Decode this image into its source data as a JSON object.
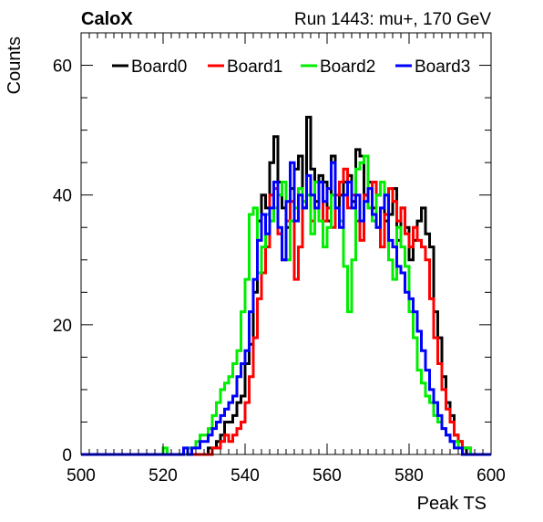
{
  "chart_data": {
    "type": "line",
    "experiment_label": "CaloX",
    "title": "Run 1443: mu+, 170 GeV",
    "xlabel": "Peak TS",
    "ylabel": "Counts",
    "xlim": [
      500,
      600
    ],
    "ylim": [
      0,
      65
    ],
    "x_ticks": [
      500,
      520,
      540,
      560,
      580,
      600
    ],
    "y_ticks": [
      0,
      20,
      40,
      60
    ],
    "grid": false,
    "legend_position": "top",
    "bin_width": 1,
    "x": [
      520,
      521,
      522,
      523,
      524,
      525,
      526,
      527,
      528,
      529,
      530,
      531,
      532,
      533,
      534,
      535,
      536,
      537,
      538,
      539,
      540,
      541,
      542,
      543,
      544,
      545,
      546,
      547,
      548,
      549,
      550,
      551,
      552,
      553,
      554,
      555,
      556,
      557,
      558,
      559,
      560,
      561,
      562,
      563,
      564,
      565,
      566,
      567,
      568,
      569,
      570,
      571,
      572,
      573,
      574,
      575,
      576,
      577,
      578,
      579,
      580,
      581,
      582,
      583,
      584,
      585,
      586,
      587,
      588,
      589,
      590,
      591,
      592,
      593,
      594,
      595,
      596,
      597,
      598,
      599
    ],
    "series": [
      {
        "name": "Board0",
        "color": "#000000",
        "values": [
          0,
          0,
          0,
          0,
          0,
          0,
          0,
          0,
          0,
          0,
          0,
          1,
          1,
          2,
          3,
          5,
          5,
          6,
          8,
          9,
          14,
          17,
          25,
          36,
          40,
          38,
          45,
          49,
          42,
          38,
          35,
          41,
          44,
          46,
          38,
          52,
          44,
          39,
          43,
          42,
          36,
          46,
          38,
          40,
          42,
          43,
          39,
          47,
          46,
          40,
          42,
          38,
          40,
          42,
          36,
          37,
          41,
          33,
          38,
          35,
          30,
          33,
          36,
          38,
          34,
          32,
          22,
          18,
          12,
          8,
          6,
          3,
          2,
          1,
          0,
          0,
          0,
          0,
          0,
          0
        ]
      },
      {
        "name": "Board1",
        "color": "#ff0000",
        "values": [
          0,
          0,
          0,
          0,
          0,
          0,
          0,
          0,
          0,
          0,
          0,
          0,
          1,
          1,
          2,
          3,
          2,
          3,
          4,
          5,
          8,
          12,
          18,
          24,
          28,
          32,
          40,
          41,
          34,
          30,
          36,
          39,
          27,
          32,
          38,
          40,
          36,
          38,
          42,
          36,
          38,
          35,
          40,
          42,
          44,
          38,
          40,
          36,
          33,
          40,
          38,
          42,
          35,
          32,
          37,
          41,
          39,
          36,
          38,
          34,
          32,
          35,
          33,
          32,
          30,
          24,
          18,
          14,
          10,
          7,
          5,
          3,
          2,
          1,
          1,
          0,
          0,
          0,
          0,
          0
        ]
      },
      {
        "name": "Board2",
        "color": "#00ee00",
        "values": [
          1,
          0,
          0,
          0,
          0,
          0,
          1,
          1,
          2,
          3,
          3,
          4,
          6,
          8,
          10,
          11,
          12,
          14,
          16,
          22,
          27,
          37,
          38,
          28,
          32,
          37,
          36,
          38,
          40,
          42,
          30,
          36,
          38,
          41,
          39,
          40,
          34,
          42,
          36,
          32,
          35,
          40,
          38,
          36,
          29,
          22,
          30,
          44,
          45,
          46,
          38,
          36,
          40,
          42,
          40,
          30,
          27,
          35,
          32,
          29,
          22,
          18,
          13,
          11,
          9,
          8,
          6,
          5,
          4,
          3,
          2,
          2,
          1,
          1,
          1,
          0,
          0,
          0,
          0,
          0
        ]
      },
      {
        "name": "Board3",
        "color": "#0000ff",
        "values": [
          0,
          0,
          0,
          0,
          0,
          1,
          0,
          1,
          1,
          2,
          2,
          3,
          4,
          5,
          6,
          7,
          8,
          9,
          12,
          14,
          16,
          22,
          27,
          33,
          37,
          34,
          38,
          42,
          35,
          30,
          39,
          45,
          36,
          40,
          38,
          43,
          40,
          38,
          42,
          39,
          41,
          45,
          38,
          35,
          40,
          42,
          38,
          40,
          36,
          39,
          41,
          37,
          35,
          38,
          40,
          33,
          32,
          29,
          28,
          25,
          24,
          22,
          19,
          16,
          13,
          10,
          8,
          6,
          4,
          3,
          2,
          1,
          1,
          0,
          0,
          0,
          0,
          0,
          0,
          0
        ]
      }
    ]
  }
}
